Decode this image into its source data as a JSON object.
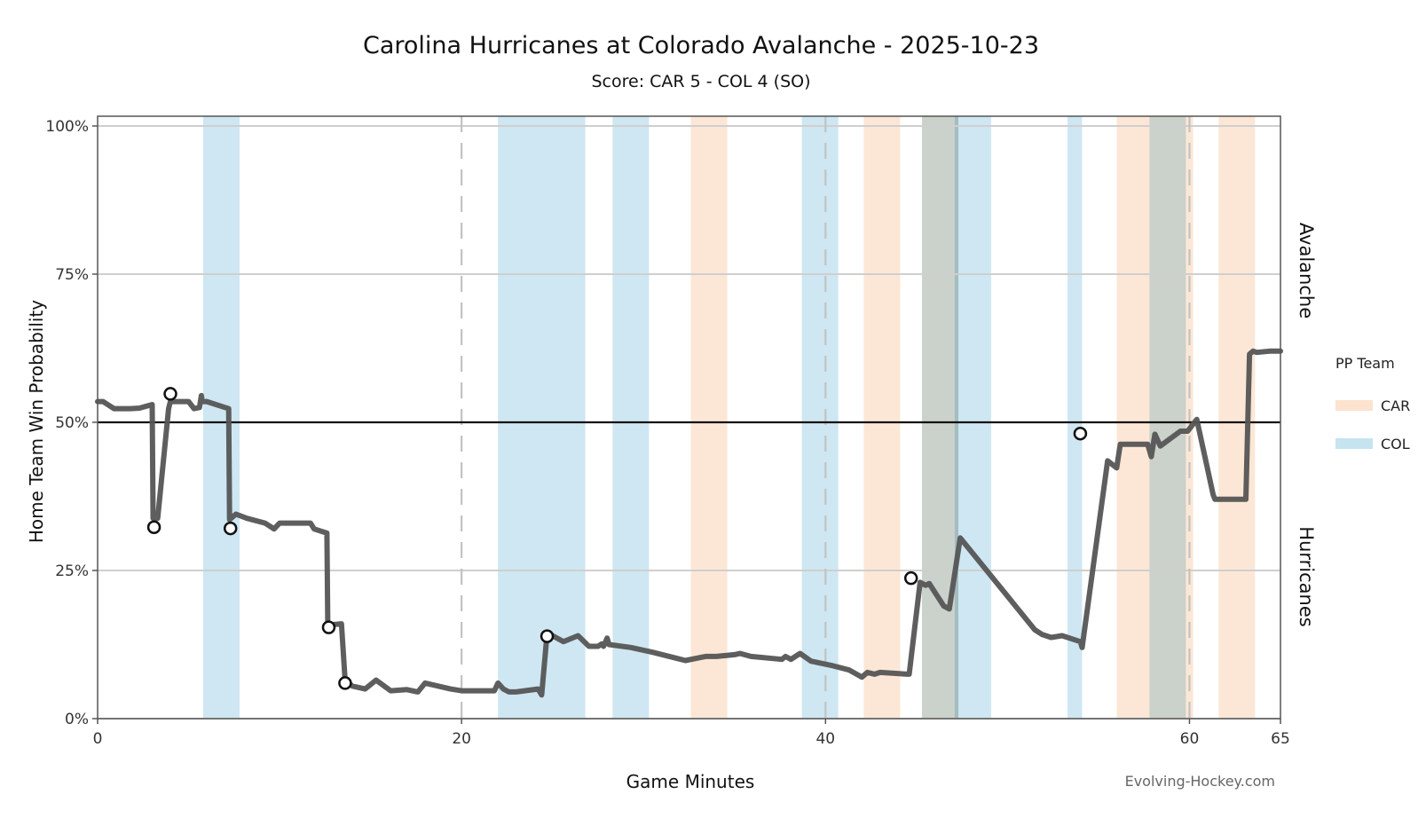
{
  "chart_data": {
    "type": "line",
    "title": "Carolina Hurricanes at Colorado Avalanche - 2025-10-23",
    "subtitle": "Score: CAR 5 - COL 4 (SO)",
    "xlabel": "Game Minutes",
    "ylabel": "Home Team Win Probability",
    "xlim": [
      0,
      65
    ],
    "ylim": [
      0,
      1
    ],
    "x_ticks": [
      0,
      20,
      40,
      60,
      65
    ],
    "x_tick_labels": [
      "0",
      "20",
      "40",
      "60",
      "65"
    ],
    "y_ticks": [
      0,
      0.25,
      0.5,
      0.75,
      1.0
    ],
    "y_tick_labels": [
      "0%",
      "25%",
      "50%",
      "75%",
      "100%"
    ],
    "period_lines": [
      20,
      40,
      60
    ],
    "reference_line": 0.5,
    "grid": true,
    "side_labels": {
      "top": "Avalanche",
      "bottom": "Hurricanes"
    },
    "legend": {
      "title": "PP Team",
      "position": "right",
      "entries": [
        {
          "name": "CAR",
          "color": "#fbe3cf"
        },
        {
          "name": "COL",
          "color": "#c6e3f0"
        }
      ]
    },
    "power_plays": [
      {
        "team": "COL",
        "start": 5.8,
        "end": 7.8
      },
      {
        "team": "COL",
        "start": 22.0,
        "end": 26.8
      },
      {
        "team": "COL",
        "start": 28.3,
        "end": 30.3
      },
      {
        "team": "CAR",
        "start": 32.6,
        "end": 34.6
      },
      {
        "team": "COL",
        "start": 38.7,
        "end": 40.7
      },
      {
        "team": "CAR",
        "start": 42.1,
        "end": 44.1
      },
      {
        "team": "CAR",
        "start": 45.3,
        "end": 47.3
      },
      {
        "team": "COL",
        "start": 45.3,
        "end": 47.3
      },
      {
        "team": "COL",
        "start": 47.1,
        "end": 49.1
      },
      {
        "team": "COL",
        "start": 53.3,
        "end": 54.1
      },
      {
        "team": "CAR",
        "start": 56.0,
        "end": 60.2
      },
      {
        "team": "COL",
        "start": 57.8,
        "end": 59.8
      },
      {
        "team": "CAR",
        "start": 61.6,
        "end": 63.6
      }
    ],
    "series": [
      {
        "color": "#555555",
        "x": [
          0,
          0.3,
          0.9,
          1.8,
          2.3,
          3.0,
          3.05,
          3.3,
          3.9,
          4.0,
          5.0,
          5.3,
          5.6,
          5.7,
          5.75,
          6.0,
          7.2,
          7.25,
          7.6,
          8.2,
          9.2,
          9.7,
          10.0,
          10.2,
          10.8,
          11.7,
          11.9,
          12.6,
          12.65,
          13.4,
          13.6,
          14.0,
          14.7,
          15.3,
          16.1,
          17.0,
          17.6,
          18.0,
          19.4,
          20.0,
          21.8,
          22.0,
          22.3,
          22.6,
          23.0,
          24.2,
          24.4,
          24.7,
          25.0,
          25.6,
          26.4,
          27.0,
          27.5,
          27.7,
          27.8,
          28.0,
          28.1,
          29.3,
          30.5,
          32.3,
          33.4,
          34.0,
          35.0,
          35.3,
          35.9,
          37.6,
          37.8,
          38.1,
          38.6,
          39.2,
          40.3,
          41.3,
          42.0,
          42.3,
          42.7,
          43.0,
          44.5,
          44.6,
          45.2,
          45.5,
          45.7,
          46.5,
          46.8,
          47.4,
          51.5,
          51.9,
          52.4,
          53.0,
          54.0,
          54.1,
          55.5,
          56.0,
          56.2,
          57.7,
          57.9,
          58.1,
          58.4,
          59.5,
          59.9,
          60.4,
          61.3,
          61.4,
          62.1,
          62.8,
          63.1,
          63.3,
          63.5,
          63.7,
          64.4,
          65
        ],
        "y": [
          0.535,
          0.535,
          0.523,
          0.523,
          0.524,
          0.53,
          0.338,
          0.338,
          0.523,
          0.535,
          0.535,
          0.523,
          0.525,
          0.545,
          0.535,
          0.535,
          0.523,
          0.336,
          0.345,
          0.338,
          0.33,
          0.32,
          0.33,
          0.33,
          0.33,
          0.33,
          0.32,
          0.313,
          0.158,
          0.16,
          0.065,
          0.055,
          0.05,
          0.065,
          0.047,
          0.049,
          0.045,
          0.06,
          0.05,
          0.047,
          0.047,
          0.06,
          0.05,
          0.045,
          0.045,
          0.05,
          0.04,
          0.143,
          0.14,
          0.13,
          0.14,
          0.122,
          0.122,
          0.126,
          0.122,
          0.136,
          0.125,
          0.12,
          0.112,
          0.098,
          0.105,
          0.105,
          0.108,
          0.11,
          0.105,
          0.1,
          0.105,
          0.1,
          0.11,
          0.097,
          0.09,
          0.082,
          0.07,
          0.078,
          0.075,
          0.078,
          0.075,
          0.075,
          0.23,
          0.225,
          0.228,
          0.19,
          0.185,
          0.305,
          0.15,
          0.142,
          0.137,
          0.14,
          0.13,
          0.12,
          0.435,
          0.423,
          0.463,
          0.463,
          0.442,
          0.48,
          0.46,
          0.485,
          0.485,
          0.505,
          0.378,
          0.37,
          0.37,
          0.37,
          0.37,
          0.615,
          0.62,
          0.618,
          0.62,
          0.62
        ]
      }
    ],
    "markers": [
      {
        "x": 3.1,
        "y": 0.323
      },
      {
        "x": 4.0,
        "y": 0.548
      },
      {
        "x": 7.3,
        "y": 0.321
      },
      {
        "x": 12.7,
        "y": 0.154
      },
      {
        "x": 13.6,
        "y": 0.06
      },
      {
        "x": 24.7,
        "y": 0.139
      },
      {
        "x": 44.7,
        "y": 0.237
      },
      {
        "x": 54.0,
        "y": 0.481
      }
    ],
    "credit": "Evolving-Hockey.com"
  }
}
